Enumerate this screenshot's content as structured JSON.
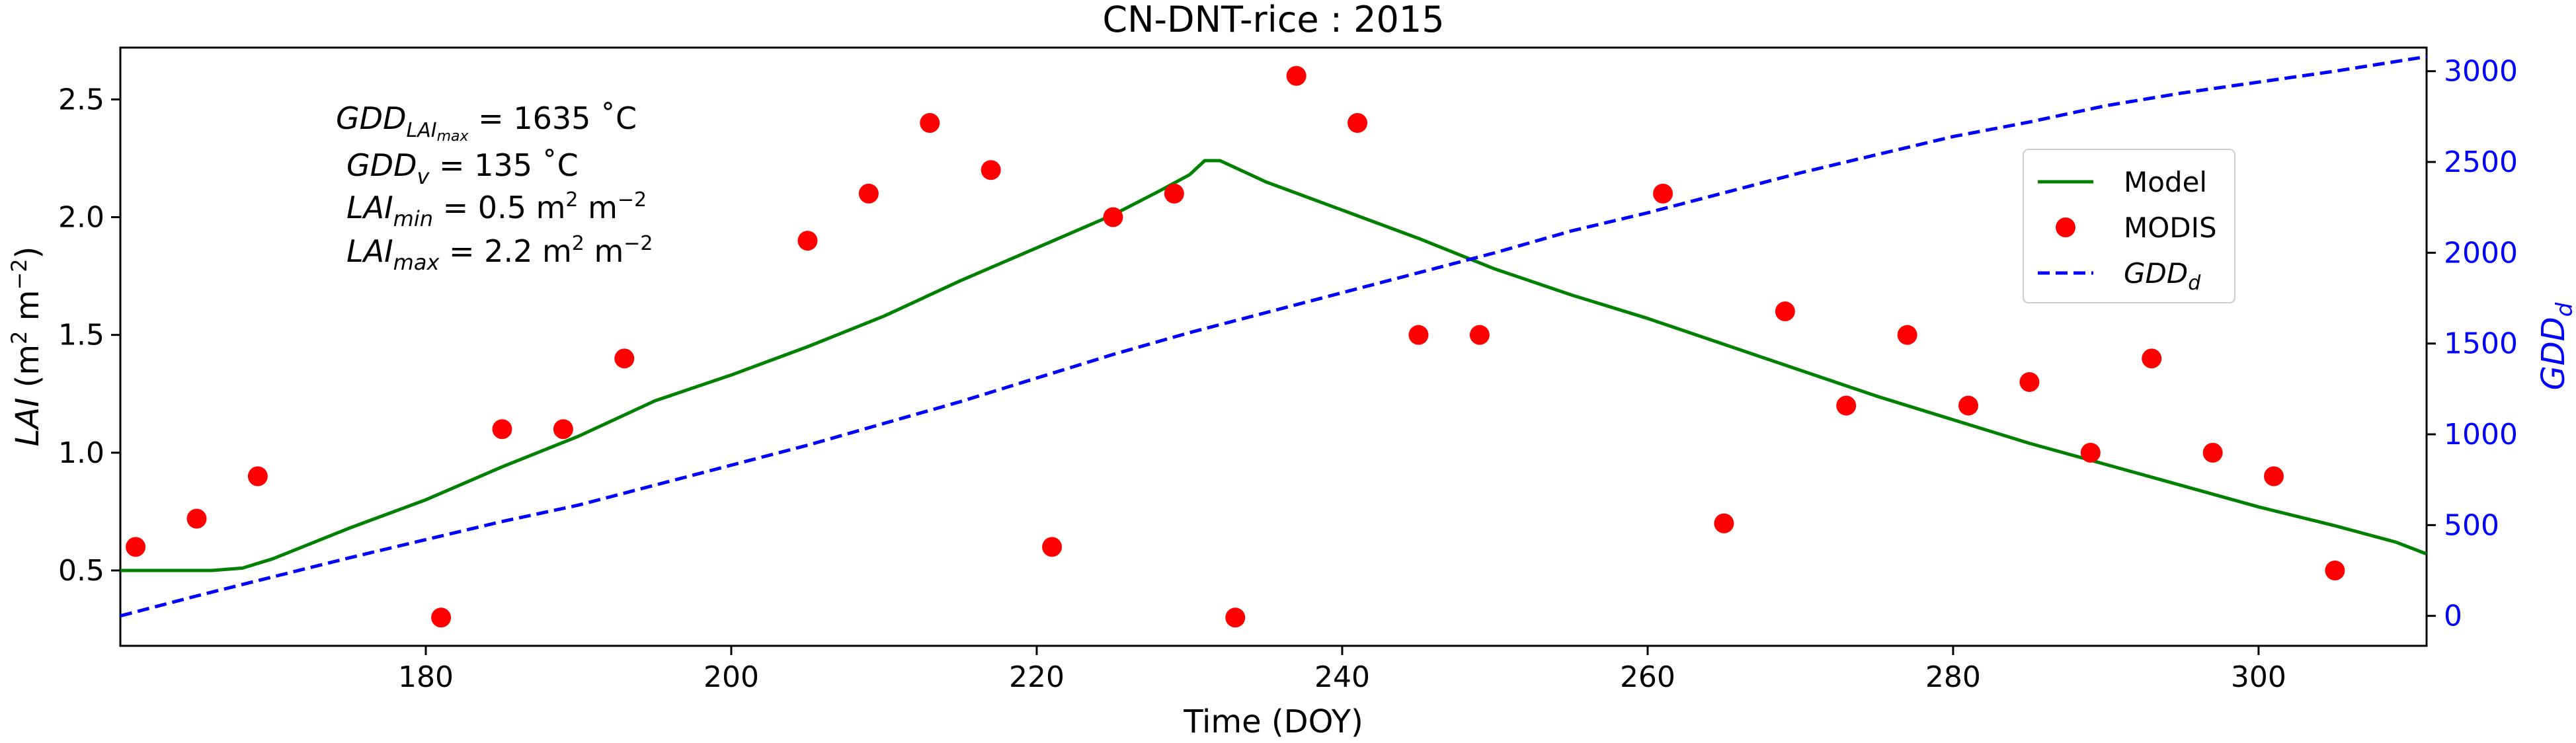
{
  "chart_data": {
    "type": "line",
    "title": "CN-DNT-rice : 2015",
    "xlabel": "Time (DOY)",
    "ylabel": "LAI (m² m⁻²)",
    "y2label": "GDD_d",
    "xlim": [
      160,
      311
    ],
    "ylim": [
      0.18,
      2.72
    ],
    "y2lim": [
      -165,
      3130
    ],
    "xticks": [
      180,
      200,
      220,
      240,
      260,
      280,
      300
    ],
    "yticks": [
      0.5,
      1.0,
      1.5,
      2.0,
      2.5
    ],
    "y2ticks": [
      0,
      500,
      1000,
      1500,
      2000,
      2500,
      3000
    ],
    "legend_position": "center-right",
    "grid": false,
    "annotations": [
      "GDD_LAImax = 1635 ˚C",
      "GDD_v = 135 ˚C",
      "LAI_min = 0.5 m² m⁻²",
      "LAI_max = 2.2 m² m⁻²"
    ],
    "series": [
      {
        "name": "Model",
        "axis": "left",
        "style": "solid",
        "color": "#008000",
        "x": [
          160,
          166,
          168,
          170,
          175,
          180,
          185,
          190,
          195,
          200,
          205,
          210,
          215,
          220,
          225,
          228,
          230,
          231,
          232,
          235,
          240,
          245,
          250,
          255,
          260,
          265,
          270,
          275,
          280,
          285,
          290,
          295,
          300,
          305,
          309,
          311
        ],
        "y": [
          0.5,
          0.5,
          0.51,
          0.55,
          0.68,
          0.8,
          0.94,
          1.07,
          1.22,
          1.33,
          1.45,
          1.58,
          1.73,
          1.87,
          2.01,
          2.11,
          2.18,
          2.24,
          2.24,
          2.15,
          2.03,
          1.91,
          1.78,
          1.67,
          1.57,
          1.46,
          1.35,
          1.24,
          1.14,
          1.04,
          0.95,
          0.86,
          0.77,
          0.69,
          0.62,
          0.57
        ]
      },
      {
        "name": "MODIS",
        "axis": "left",
        "style": "markers",
        "color": "#ff0000",
        "x": [
          161,
          165,
          169,
          181,
          185,
          189,
          193,
          205,
          209,
          213,
          217,
          221,
          225,
          229,
          233,
          237,
          241,
          245,
          249,
          261,
          265,
          269,
          273,
          277,
          281,
          285,
          289,
          293,
          297,
          301,
          305
        ],
        "y": [
          0.6,
          0.72,
          0.9,
          0.3,
          1.1,
          1.1,
          1.4,
          1.9,
          2.1,
          2.4,
          2.2,
          0.6,
          2.0,
          2.1,
          0.3,
          2.6,
          2.4,
          1.5,
          1.5,
          2.1,
          0.7,
          1.6,
          1.2,
          1.5,
          1.2,
          1.3,
          1.0,
          1.4,
          1.0,
          0.9,
          0.5
        ]
      },
      {
        "name": "GDD_d",
        "axis": "right",
        "style": "dashed",
        "color": "#0000ff",
        "x": [
          160,
          165,
          170,
          175,
          180,
          185,
          190,
          195,
          200,
          205,
          210,
          215,
          220,
          225,
          230,
          235,
          240,
          245,
          250,
          255,
          260,
          265,
          270,
          275,
          280,
          285,
          290,
          295,
          300,
          305,
          311
        ],
        "y": [
          0,
          110,
          215,
          320,
          420,
          520,
          610,
          720,
          830,
          940,
          1060,
          1180,
          1310,
          1440,
          1560,
          1670,
          1780,
          1890,
          2000,
          2120,
          2220,
          2330,
          2440,
          2540,
          2640,
          2720,
          2810,
          2880,
          2940,
          3000,
          3080
        ]
      }
    ]
  }
}
